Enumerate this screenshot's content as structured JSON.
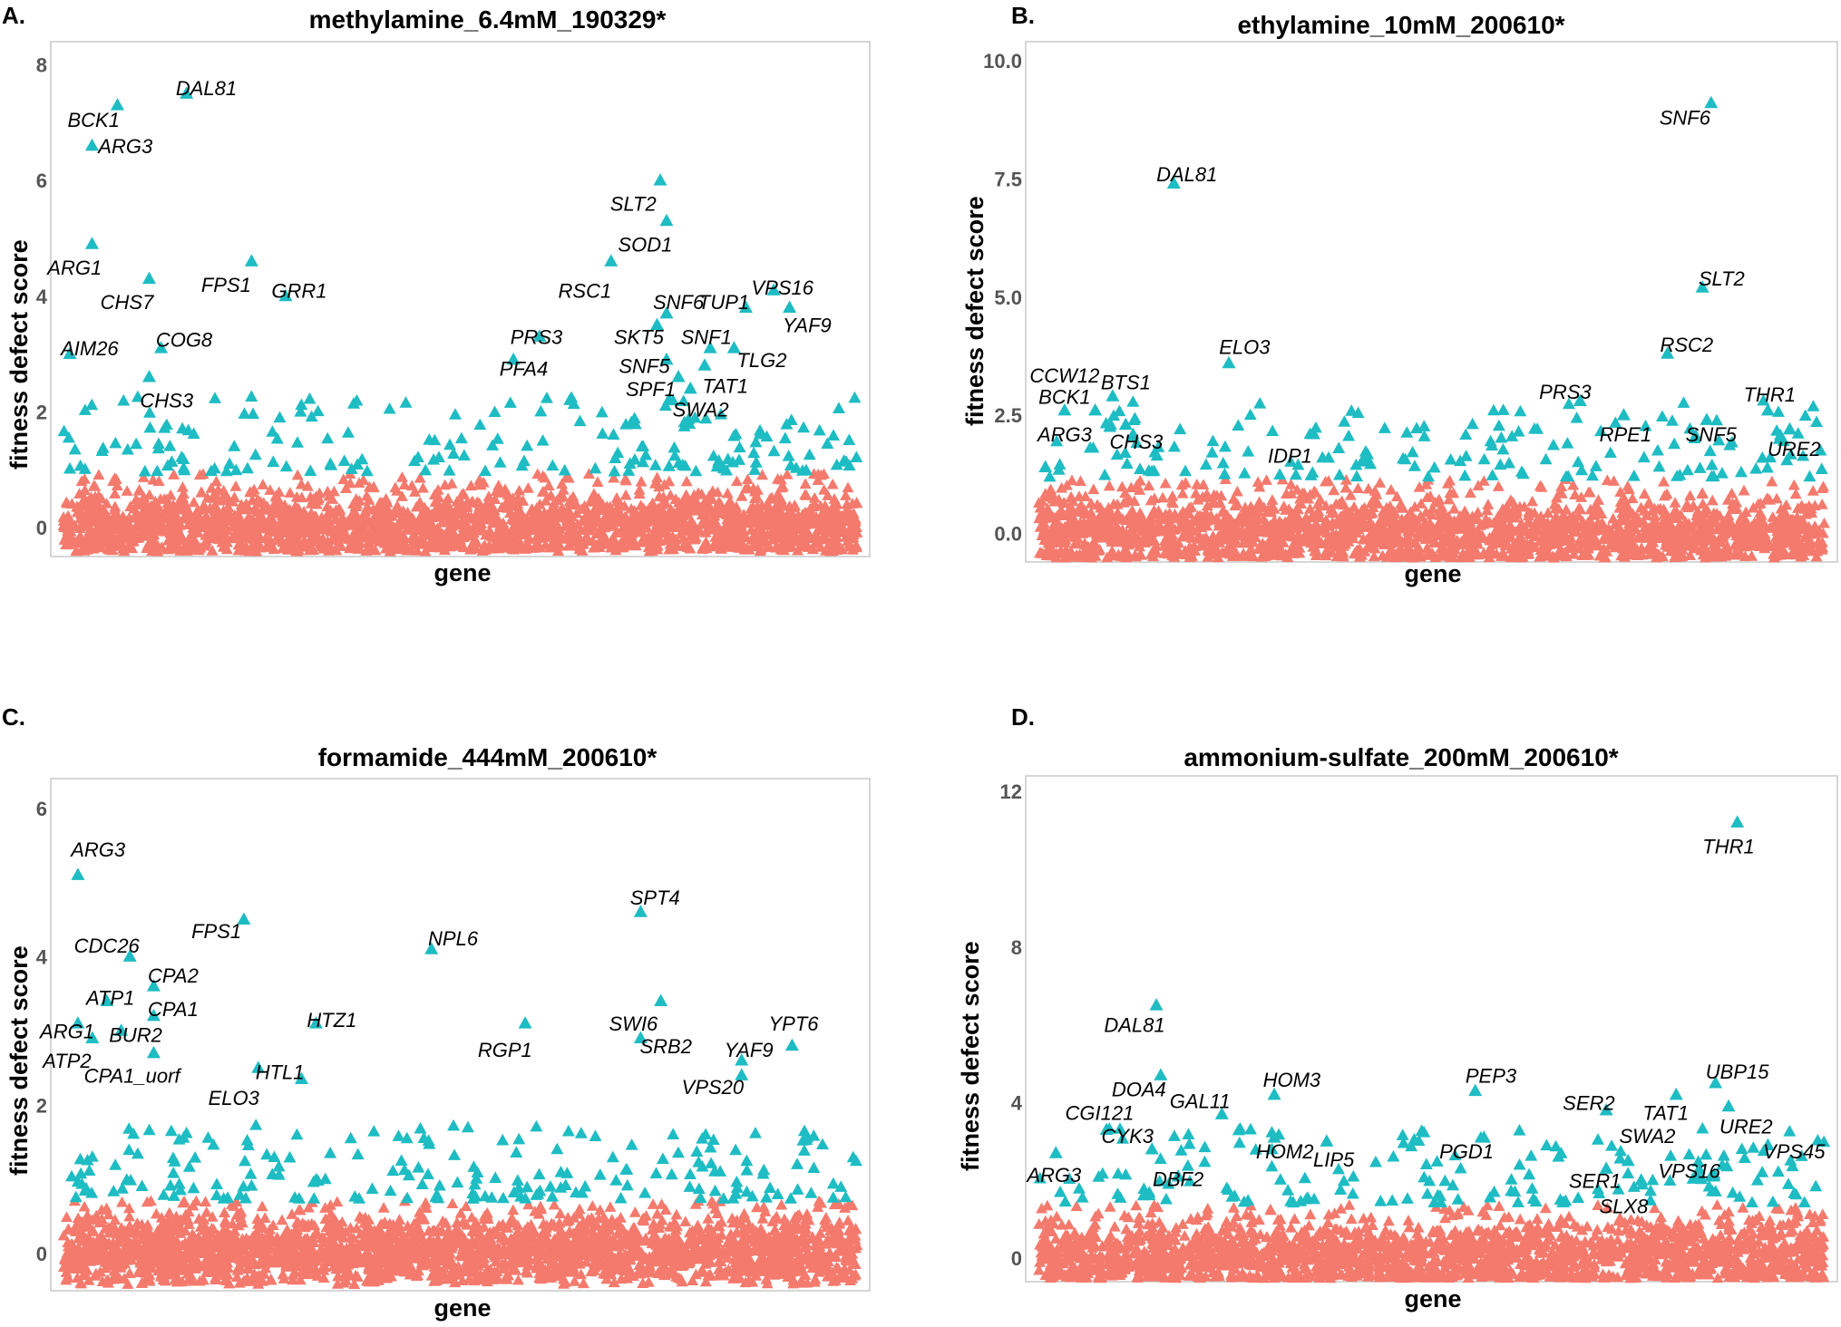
{
  "colors": {
    "hit": "#1ebcc3",
    "background": "#f47a6d",
    "frame": "#c8c8c8",
    "tick": "#555555"
  },
  "chart_data": [
    {
      "type": "scatter",
      "panel_letter": "A.",
      "title": "methylamine_6.4mM_190329*",
      "xlabel": "gene",
      "ylabel": "fitness defect score",
      "ylim": [
        -0.5,
        8.4
      ],
      "yticks": [
        0,
        2,
        4,
        6,
        8
      ],
      "n_genes": 1000,
      "seed": 11,
      "labeled_hits": [
        {
          "name": "DAL81",
          "x": 155,
          "y": 7.5
        },
        {
          "name": "BCK1",
          "x": 68,
          "y": 7.3
        },
        {
          "name": "ARG3",
          "x": 36,
          "y": 6.6
        },
        {
          "name": "ARG1",
          "x": 36,
          "y": 4.9
        },
        {
          "name": "FPS1",
          "x": 237,
          "y": 4.6
        },
        {
          "name": "CHS7",
          "x": 108,
          "y": 4.3
        },
        {
          "name": "GRR1",
          "x": 280,
          "y": 4.0
        },
        {
          "name": "AIM26",
          "x": 8,
          "y": 3.0
        },
        {
          "name": "COG8",
          "x": 123,
          "y": 3.1
        },
        {
          "name": "CHS3",
          "x": 108,
          "y": 2.6
        },
        {
          "name": "SLT2",
          "x": 752,
          "y": 6.0
        },
        {
          "name": "SOD1",
          "x": 760,
          "y": 5.3
        },
        {
          "name": "RSC1",
          "x": 690,
          "y": 4.6
        },
        {
          "name": "SNF6",
          "x": 760,
          "y": 3.7
        },
        {
          "name": "TUP1",
          "x": 860,
          "y": 3.8
        },
        {
          "name": "VPS16",
          "x": 895,
          "y": 4.1
        },
        {
          "name": "YAF9",
          "x": 915,
          "y": 3.8
        },
        {
          "name": "PRS3",
          "x": 600,
          "y": 3.3
        },
        {
          "name": "SKT5",
          "x": 748,
          "y": 3.5
        },
        {
          "name": "SNF1",
          "x": 815,
          "y": 3.1
        },
        {
          "name": "TLG2",
          "x": 845,
          "y": 3.1
        },
        {
          "name": "PFA4",
          "x": 567,
          "y": 2.9
        },
        {
          "name": "SNF5",
          "x": 760,
          "y": 2.9
        },
        {
          "name": "TAT1",
          "x": 808,
          "y": 2.8
        },
        {
          "name": "SPF1",
          "x": 775,
          "y": 2.6
        },
        {
          "name": "SWA2",
          "x": 790,
          "y": 2.4
        }
      ],
      "labels_text": [
        {
          "name": "DAL81",
          "lx": 180,
          "ly": 7.6
        },
        {
          "name": "BCK1",
          "lx": 38,
          "ly": 7.05
        },
        {
          "name": "ARG3",
          "lx": 78,
          "ly": 6.6
        },
        {
          "name": "ARG1",
          "lx": 14,
          "ly": 4.5
        },
        {
          "name": "FPS1",
          "lx": 205,
          "ly": 4.2
        },
        {
          "name": "CHS7",
          "lx": 80,
          "ly": 3.9
        },
        {
          "name": "GRR1",
          "lx": 297,
          "ly": 4.1
        },
        {
          "name": "AIM26",
          "lx": 33,
          "ly": 3.1
        },
        {
          "name": "COG8",
          "lx": 152,
          "ly": 3.25
        },
        {
          "name": "CHS3",
          "lx": 130,
          "ly": 2.2
        },
        {
          "name": "SLT2",
          "lx": 718,
          "ly": 5.6
        },
        {
          "name": "SOD1",
          "lx": 733,
          "ly": 4.9
        },
        {
          "name": "RSC1",
          "lx": 657,
          "ly": 4.1
        },
        {
          "name": "SNF6",
          "lx": 775,
          "ly": 3.9
        },
        {
          "name": "TUP1",
          "lx": 832,
          "ly": 3.9
        },
        {
          "name": "VPS16",
          "lx": 906,
          "ly": 4.15
        },
        {
          "name": "YAF9",
          "lx": 937,
          "ly": 3.5
        },
        {
          "name": "PRS3",
          "lx": 596,
          "ly": 3.3
        },
        {
          "name": "SKT5",
          "lx": 725,
          "ly": 3.3
        },
        {
          "name": "SNF1",
          "lx": 810,
          "ly": 3.3
        },
        {
          "name": "TLG2",
          "lx": 880,
          "ly": 2.9
        },
        {
          "name": "PFA4",
          "lx": 580,
          "ly": 2.75
        },
        {
          "name": "SNF5",
          "lx": 732,
          "ly": 2.8
        },
        {
          "name": "TAT1",
          "lx": 834,
          "ly": 2.45
        },
        {
          "name": "SPF1",
          "lx": 740,
          "ly": 2.4
        },
        {
          "name": "SWA2",
          "lx": 803,
          "ly": 2.05
        }
      ]
    },
    {
      "type": "scatter",
      "panel_letter": "B.",
      "title": "ethylamine_10mM_200610*",
      "xlabel": "gene",
      "ylabel": "fitness defect score",
      "ylim": [
        -0.6,
        10.4
      ],
      "yticks": [
        0.0,
        2.5,
        5.0,
        7.5,
        10.0
      ],
      "ytick_labels": [
        "0.0",
        "2.5",
        "5.0",
        "7.5",
        "10.0"
      ],
      "n_genes": 900,
      "seed": 23,
      "labeled_hits": [
        {
          "name": "SNF6",
          "x": 770,
          "y": 9.1
        },
        {
          "name": "DAL81",
          "x": 155,
          "y": 7.4
        },
        {
          "name": "SLT2",
          "x": 760,
          "y": 5.2
        },
        {
          "name": "RSC2",
          "x": 720,
          "y": 3.8
        },
        {
          "name": "ELO3",
          "x": 218,
          "y": 3.6
        },
        {
          "name": "CCW12",
          "x": 30,
          "y": 2.6
        },
        {
          "name": "BCK1",
          "x": 65,
          "y": 2.6
        },
        {
          "name": "BTS1",
          "x": 85,
          "y": 2.9
        },
        {
          "name": "ARG3",
          "x": 8,
          "y": 1.4
        },
        {
          "name": "CHS3",
          "x": 100,
          "y": 2.3
        },
        {
          "name": "IDP1",
          "x": 315,
          "y": 2.1
        },
        {
          "name": "PRS3",
          "x": 620,
          "y": 2.8
        },
        {
          "name": "THR1",
          "x": 835,
          "y": 2.6
        },
        {
          "name": "RPE1",
          "x": 670,
          "y": 2.5
        },
        {
          "name": "SNF5",
          "x": 765,
          "y": 2.4
        },
        {
          "name": "URE2",
          "x": 860,
          "y": 2.2
        }
      ],
      "labels_text": [
        {
          "name": "SNF6",
          "lx": 740,
          "ly": 8.8
        },
        {
          "name": "DAL81",
          "lx": 170,
          "ly": 7.6
        },
        {
          "name": "SLT2",
          "lx": 782,
          "ly": 5.4
        },
        {
          "name": "RSC2",
          "lx": 742,
          "ly": 4.0
        },
        {
          "name": "ELO3",
          "lx": 236,
          "ly": 3.95
        },
        {
          "name": "CCW12",
          "lx": 30,
          "ly": 3.35
        },
        {
          "name": "BCK1",
          "lx": 30,
          "ly": 2.9
        },
        {
          "name": "BTS1",
          "lx": 100,
          "ly": 3.2
        },
        {
          "name": "ARG3",
          "lx": 30,
          "ly": 2.1
        },
        {
          "name": "CHS3",
          "lx": 112,
          "ly": 1.95
        },
        {
          "name": "IDP1",
          "lx": 288,
          "ly": 1.65
        },
        {
          "name": "PRS3",
          "lx": 603,
          "ly": 3.0
        },
        {
          "name": "THR1",
          "lx": 837,
          "ly": 2.95
        },
        {
          "name": "RPE1",
          "lx": 672,
          "ly": 2.1
        },
        {
          "name": "SNF5",
          "lx": 770,
          "ly": 2.1
        },
        {
          "name": "URE2",
          "lx": 865,
          "ly": 1.8
        }
      ]
    },
    {
      "type": "scatter",
      "panel_letter": "C.",
      "title": "formamide_444mM_200610*",
      "xlabel": "gene",
      "ylabel": "fitness defect score",
      "ylim": [
        -0.5,
        6.4
      ],
      "yticks": [
        0,
        2,
        4,
        6
      ],
      "n_genes": 1100,
      "seed": 37,
      "labeled_hits": [
        {
          "name": "ARG3",
          "x": 20,
          "y": 5.1
        },
        {
          "name": "FPS1",
          "x": 250,
          "y": 4.5
        },
        {
          "name": "SPT4",
          "x": 800,
          "y": 4.6
        },
        {
          "name": "NPL6",
          "x": 510,
          "y": 4.1
        },
        {
          "name": "CDC26",
          "x": 92,
          "y": 4.0
        },
        {
          "name": "CPA2",
          "x": 125,
          "y": 3.6
        },
        {
          "name": "ATP1",
          "x": 60,
          "y": 3.4
        },
        {
          "name": "CPA1",
          "x": 125,
          "y": 3.2
        },
        {
          "name": "ARG1",
          "x": 20,
          "y": 3.1
        },
        {
          "name": "BUR2",
          "x": 80,
          "y": 3.0
        },
        {
          "name": "ATP2",
          "x": 40,
          "y": 2.9
        },
        {
          "name": "CPA1_uorf",
          "x": 125,
          "y": 2.7
        },
        {
          "name": "HTZ1",
          "x": 350,
          "y": 3.1
        },
        {
          "name": "HTL1",
          "x": 330,
          "y": 2.35
        },
        {
          "name": "ELO3",
          "x": 270,
          "y": 2.5
        },
        {
          "name": "RGP1",
          "x": 640,
          "y": 3.1
        },
        {
          "name": "SWI6",
          "x": 828,
          "y": 3.4
        },
        {
          "name": "SRB2",
          "x": 800,
          "y": 2.9
        },
        {
          "name": "YAF9",
          "x": 940,
          "y": 2.6
        },
        {
          "name": "YPT6",
          "x": 1010,
          "y": 2.8
        },
        {
          "name": "VPS20",
          "x": 940,
          "y": 2.4
        }
      ],
      "labels_text": [
        {
          "name": "ARG3",
          "lx": 48,
          "ly": 5.45
        },
        {
          "name": "FPS1",
          "lx": 212,
          "ly": 4.35
        },
        {
          "name": "SPT4",
          "lx": 820,
          "ly": 4.8
        },
        {
          "name": "NPL6",
          "lx": 540,
          "ly": 4.25
        },
        {
          "name": "CDC26",
          "lx": 60,
          "ly": 4.15
        },
        {
          "name": "CPA2",
          "lx": 152,
          "ly": 3.75
        },
        {
          "name": "ATP1",
          "lx": 65,
          "ly": 3.45
        },
        {
          "name": "CPA1",
          "lx": 152,
          "ly": 3.3
        },
        {
          "name": "ARG1",
          "lx": 5,
          "ly": 3.0
        },
        {
          "name": "BUR2",
          "lx": 100,
          "ly": 2.95
        },
        {
          "name": "ATP2",
          "lx": 5,
          "ly": 2.6
        },
        {
          "name": "CPA1_uorf",
          "lx": 95,
          "ly": 2.4
        },
        {
          "name": "HTZ1",
          "lx": 372,
          "ly": 3.15
        },
        {
          "name": "HTL1",
          "lx": 300,
          "ly": 2.45
        },
        {
          "name": "ELO3",
          "lx": 236,
          "ly": 2.1
        },
        {
          "name": "RGP1",
          "lx": 612,
          "ly": 2.75
        },
        {
          "name": "SWI6",
          "lx": 790,
          "ly": 3.1
        },
        {
          "name": "SRB2",
          "lx": 835,
          "ly": 2.8
        },
        {
          "name": "YAF9",
          "lx": 950,
          "ly": 2.75
        },
        {
          "name": "YPT6",
          "lx": 1012,
          "ly": 3.1
        },
        {
          "name": "VPS20",
          "lx": 900,
          "ly": 2.25
        }
      ]
    },
    {
      "type": "scatter",
      "panel_letter": "D.",
      "title": "ammonium-sulfate_200mM_200610*",
      "xlabel": "gene",
      "ylabel": "fitness defect score",
      "ylim": [
        -0.6,
        12.4
      ],
      "yticks": [
        0,
        4,
        8,
        12
      ],
      "n_genes": 900,
      "seed": 51,
      "labeled_hits": [
        {
          "name": "THR1",
          "x": 800,
          "y": 11.2
        },
        {
          "name": "DAL81",
          "x": 135,
          "y": 6.5
        },
        {
          "name": "DOA4",
          "x": 140,
          "y": 4.7
        },
        {
          "name": "GAL11",
          "x": 210,
          "y": 3.7
        },
        {
          "name": "HOM3",
          "x": 270,
          "y": 4.2
        },
        {
          "name": "CGI121",
          "x": 78,
          "y": 3.3
        },
        {
          "name": "CYK3",
          "x": 130,
          "y": 2.8
        },
        {
          "name": "HOM2",
          "x": 270,
          "y": 3.1
        },
        {
          "name": "LIP5",
          "x": 330,
          "y": 3.0
        },
        {
          "name": "DBF2",
          "x": 160,
          "y": 2.1
        },
        {
          "name": "ARG3",
          "x": 20,
          "y": 2.7
        },
        {
          "name": "PEP3",
          "x": 500,
          "y": 4.3
        },
        {
          "name": "PGD1",
          "x": 510,
          "y": 3.1
        },
        {
          "name": "SER2",
          "x": 650,
          "y": 3.8
        },
        {
          "name": "SER1",
          "x": 650,
          "y": 2.3
        },
        {
          "name": "SWA2",
          "x": 675,
          "y": 2.5
        },
        {
          "name": "TAT1",
          "x": 730,
          "y": 4.2
        },
        {
          "name": "SLX8",
          "x": 690,
          "y": 2.0
        },
        {
          "name": "UBP15",
          "x": 775,
          "y": 4.5
        },
        {
          "name": "URE2",
          "x": 790,
          "y": 3.9
        },
        {
          "name": "VPS16",
          "x": 770,
          "y": 2.1
        },
        {
          "name": "VPS45",
          "x": 835,
          "y": 2.9
        }
      ],
      "labels_text": [
        {
          "name": "THR1",
          "lx": 790,
          "ly": 10.6
        },
        {
          "name": "DAL81",
          "lx": 110,
          "ly": 6.0
        },
        {
          "name": "DOA4",
          "lx": 115,
          "ly": 4.35
        },
        {
          "name": "GAL11",
          "lx": 185,
          "ly": 4.05
        },
        {
          "name": "HOM3",
          "lx": 290,
          "ly": 4.6
        },
        {
          "name": "CGI121",
          "lx": 70,
          "ly": 3.75
        },
        {
          "name": "CYK3",
          "lx": 102,
          "ly": 3.15
        },
        {
          "name": "HOM2",
          "lx": 282,
          "ly": 2.75
        },
        {
          "name": "LIP5",
          "lx": 338,
          "ly": 2.55
        },
        {
          "name": "DBF2",
          "lx": 160,
          "ly": 2.05
        },
        {
          "name": "ARG3",
          "lx": 18,
          "ly": 2.15
        },
        {
          "name": "PEP3",
          "lx": 518,
          "ly": 4.7
        },
        {
          "name": "PGD1",
          "lx": 490,
          "ly": 2.75
        },
        {
          "name": "SER2",
          "lx": 630,
          "ly": 4.0
        },
        {
          "name": "SER1",
          "lx": 637,
          "ly": 2.0
        },
        {
          "name": "SWA2",
          "lx": 697,
          "ly": 3.15
        },
        {
          "name": "TAT1",
          "lx": 718,
          "ly": 3.75
        },
        {
          "name": "SLX8",
          "lx": 670,
          "ly": 1.35
        },
        {
          "name": "UBP15",
          "lx": 800,
          "ly": 4.8
        },
        {
          "name": "URE2",
          "lx": 810,
          "ly": 3.4
        },
        {
          "name": "VPS16",
          "lx": 745,
          "ly": 2.25
        },
        {
          "name": "VPS45",
          "lx": 865,
          "ly": 2.75
        }
      ]
    }
  ]
}
